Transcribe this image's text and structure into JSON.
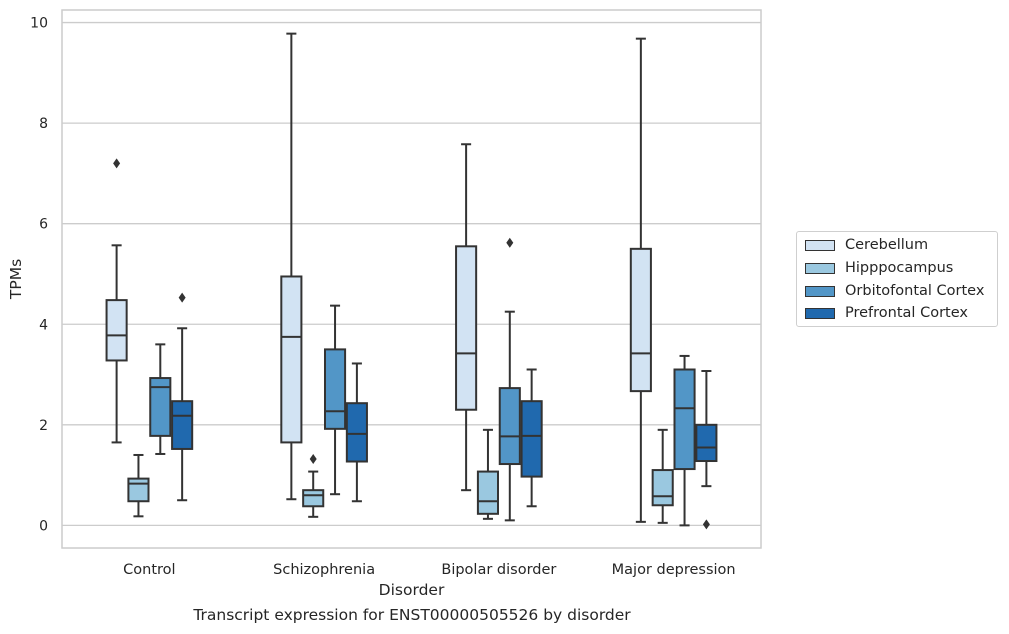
{
  "chart_data": {
    "type": "box",
    "xlabel": "Disorder",
    "ylabel": "TPMs",
    "caption": "Transcript expression for ENST00000505526 by disorder",
    "categories": [
      "Control",
      "Schizophrenia",
      "Bipolar disorder",
      "Major depression"
    ],
    "ylim": [
      -0.45,
      10.25
    ],
    "yticks": [
      0,
      2,
      4,
      6,
      8,
      10
    ],
    "grid": true,
    "legend_position": "right",
    "series": [
      {
        "name": "Cerebellum",
        "color": "#d2e3f3",
        "boxes": [
          {
            "whisker_low": 1.65,
            "q1": 3.28,
            "median": 3.78,
            "q3": 4.48,
            "whisker_high": 5.57,
            "outliers": [
              7.2
            ]
          },
          {
            "whisker_low": 0.52,
            "q1": 1.65,
            "median": 3.75,
            "q3": 4.95,
            "whisker_high": 9.78,
            "outliers": []
          },
          {
            "whisker_low": 0.7,
            "q1": 2.3,
            "median": 3.42,
            "q3": 5.55,
            "whisker_high": 7.58,
            "outliers": []
          },
          {
            "whisker_low": 0.07,
            "q1": 2.67,
            "median": 3.42,
            "q3": 5.5,
            "whisker_high": 9.68,
            "outliers": []
          }
        ]
      },
      {
        "name": "Hipppocampus",
        "color": "#9ac8e0",
        "boxes": [
          {
            "whisker_low": 0.18,
            "q1": 0.48,
            "median": 0.83,
            "q3": 0.93,
            "whisker_high": 1.4,
            "outliers": []
          },
          {
            "whisker_low": 0.17,
            "q1": 0.38,
            "median": 0.6,
            "q3": 0.7,
            "whisker_high": 1.07,
            "outliers": [
              1.32
            ]
          },
          {
            "whisker_low": 0.13,
            "q1": 0.23,
            "median": 0.48,
            "q3": 1.07,
            "whisker_high": 1.9,
            "outliers": []
          },
          {
            "whisker_low": 0.05,
            "q1": 0.4,
            "median": 0.58,
            "q3": 1.1,
            "whisker_high": 1.9,
            "outliers": []
          }
        ]
      },
      {
        "name": "Orbitofontal Cortex",
        "color": "#5296c7",
        "boxes": [
          {
            "whisker_low": 1.42,
            "q1": 1.78,
            "median": 2.75,
            "q3": 2.93,
            "whisker_high": 3.6,
            "outliers": []
          },
          {
            "whisker_low": 0.62,
            "q1": 1.92,
            "median": 2.27,
            "q3": 3.5,
            "whisker_high": 4.37,
            "outliers": []
          },
          {
            "whisker_low": 0.1,
            "q1": 1.22,
            "median": 1.77,
            "q3": 2.73,
            "whisker_high": 4.25,
            "outliers": [
              5.62
            ]
          },
          {
            "whisker_low": 0.0,
            "q1": 1.12,
            "median": 2.33,
            "q3": 3.1,
            "whisker_high": 3.37,
            "outliers": []
          }
        ]
      },
      {
        "name": "Prefrontal Cortex",
        "color": "#2069ae",
        "boxes": [
          {
            "whisker_low": 0.5,
            "q1": 1.52,
            "median": 2.18,
            "q3": 2.47,
            "whisker_high": 3.92,
            "outliers": [
              4.53
            ]
          },
          {
            "whisker_low": 0.48,
            "q1": 1.27,
            "median": 1.82,
            "q3": 2.43,
            "whisker_high": 3.22,
            "outliers": []
          },
          {
            "whisker_low": 0.38,
            "q1": 0.97,
            "median": 1.78,
            "q3": 2.47,
            "whisker_high": 3.1,
            "outliers": []
          },
          {
            "whisker_low": 0.78,
            "q1": 1.28,
            "median": 1.55,
            "q3": 2.0,
            "whisker_high": 3.07,
            "outliers": [
              0.02
            ]
          }
        ]
      }
    ]
  }
}
